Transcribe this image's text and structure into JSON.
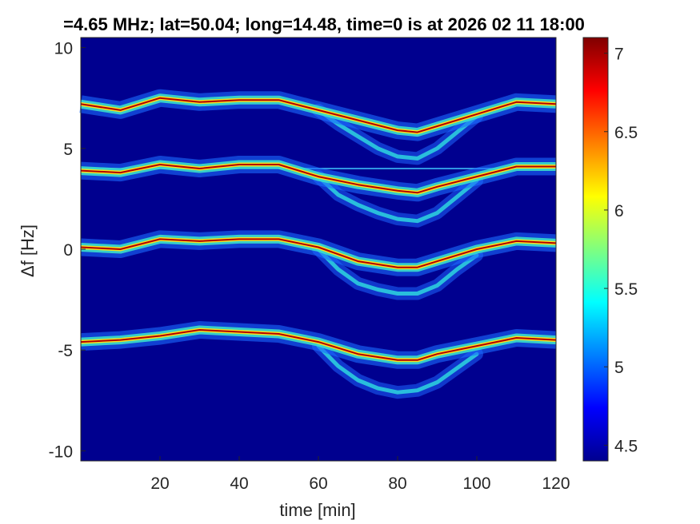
{
  "chart_data": {
    "type": "heatmap",
    "title": "=4.65 MHz;  lat=50.04; long=14.48, time=0 is at 2026 02 11 18:00",
    "xlabel": "time [min]",
    "ylabel": "Δf [Hz]",
    "xlim": [
      0,
      120
    ],
    "ylim": [
      -10.5,
      10.5
    ],
    "xticks": [
      "20",
      "40",
      "60",
      "80",
      "100",
      "120"
    ],
    "yticks": [
      "10",
      "5",
      "0",
      "-5",
      "-10"
    ],
    "colorbar": {
      "range": [
        4.4,
        7.1
      ],
      "ticks": [
        "7",
        "6.5",
        "6",
        "5.5",
        "5",
        "4.5"
      ],
      "colormap": "jet"
    },
    "colors": {
      "background": "#00008f",
      "trace_peak": "#b40000"
    },
    "series": [
      {
        "x": [
          0,
          10,
          20,
          30,
          40,
          50,
          60,
          70,
          80,
          85,
          90,
          100,
          110,
          120
        ],
        "values": [
          7.2,
          6.9,
          7.5,
          7.3,
          7.4,
          7.4,
          6.9,
          6.4,
          5.9,
          5.8,
          6.1,
          6.7,
          7.3,
          7.2
        ]
      },
      {
        "x": [
          0,
          10,
          20,
          30,
          40,
          50,
          60,
          70,
          80,
          85,
          90,
          100,
          110,
          120
        ],
        "values": [
          3.9,
          3.8,
          4.2,
          4.0,
          4.2,
          4.2,
          3.6,
          3.2,
          2.9,
          2.8,
          3.1,
          3.6,
          4.1,
          4.1
        ]
      },
      {
        "x": [
          0,
          10,
          20,
          30,
          40,
          50,
          60,
          70,
          80,
          85,
          90,
          100,
          110,
          120
        ],
        "values": [
          0.1,
          0.0,
          0.5,
          0.4,
          0.5,
          0.5,
          0.1,
          -0.6,
          -0.9,
          -0.9,
          -0.6,
          0.0,
          0.4,
          0.3
        ]
      },
      {
        "x": [
          0,
          10,
          20,
          30,
          40,
          50,
          60,
          70,
          80,
          85,
          90,
          100,
          110,
          120
        ],
        "values": [
          -4.6,
          -4.5,
          -4.3,
          -4.0,
          -4.1,
          -4.2,
          -4.6,
          -5.2,
          -5.5,
          -5.5,
          -5.2,
          -4.8,
          -4.4,
          -4.5
        ]
      }
    ],
    "secondary_traces": [
      {
        "x": [
          60,
          65,
          70,
          75,
          80,
          85,
          90,
          95,
          100
        ],
        "values": [
          6.9,
          6.2,
          5.6,
          5.0,
          4.6,
          4.5,
          5.0,
          5.8,
          6.6
        ]
      },
      {
        "x": [
          60,
          65,
          70,
          75,
          80,
          85,
          90,
          95,
          100
        ],
        "values": [
          3.6,
          2.7,
          2.2,
          1.8,
          1.5,
          1.4,
          1.8,
          2.6,
          3.4
        ]
      },
      {
        "x": [
          60,
          65,
          70,
          75,
          80,
          85,
          90,
          95,
          100
        ],
        "values": [
          0.0,
          -1.0,
          -1.7,
          -2.0,
          -2.2,
          -2.2,
          -1.8,
          -1.0,
          -0.3
        ]
      },
      {
        "x": [
          60,
          65,
          70,
          75,
          80,
          85,
          90,
          95,
          100
        ],
        "values": [
          -4.8,
          -5.8,
          -6.5,
          -6.9,
          -7.1,
          -7.0,
          -6.6,
          -5.9,
          -5.2
        ]
      }
    ],
    "horizontal_line": {
      "y": 4.0,
      "x": [
        0,
        120
      ]
    }
  }
}
